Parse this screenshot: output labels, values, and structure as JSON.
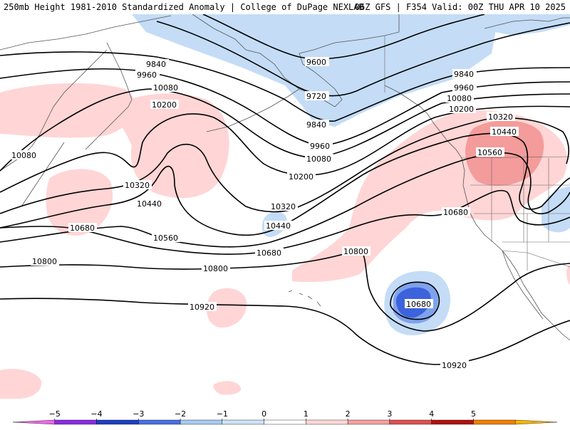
{
  "header": {
    "left": "250mb Height 1981-2010 Standardized Anomaly | College of DuPage NEXLAB",
    "right": "06Z GFS | F354 Valid: 00Z THU APR 10 2025"
  },
  "contour_labels": {
    "l9600": "9600",
    "l9720": "9720",
    "l9840a": "9840",
    "l9840b": "9840",
    "l9840c": "9840",
    "l9960a": "9960",
    "l9960b": "9960",
    "l9960c": "9960",
    "l10080a": "10080",
    "l10080b": "10080",
    "l10080c": "10080",
    "l10080d": "10080",
    "l10200a": "10200",
    "l10200b": "10200",
    "l10200c": "10200",
    "l10320a": "10320",
    "l10320b": "10320",
    "l10320c": "10320",
    "l10440a": "10440",
    "l10440b": "10440",
    "l10440c": "10440",
    "l10560a": "10560",
    "l10560b": "10560",
    "l10680a": "10680",
    "l10680b": "10680",
    "l10680c": "10680",
    "l10680d": "10680",
    "l10800a": "10800",
    "l10800b": "10800",
    "l10800c": "10800",
    "l10920a": "10920",
    "l10920b": "10920"
  },
  "legend": {
    "ticks": [
      "−5",
      "−4",
      "−3",
      "−2",
      "−1",
      "0",
      "1",
      "2",
      "3",
      "4",
      "5"
    ],
    "colors": [
      "#ee66ee",
      "#8a2be2",
      "#1e3fbf",
      "#4a6fe3",
      "#a9cbf2",
      "#cfe3f8",
      "#ffffff",
      "#ffd7d7",
      "#f5a0a0",
      "#e05050",
      "#b01010",
      "#f08000",
      "#ffb300"
    ]
  },
  "anomaly_colors": {
    "neg1": "#c4dcf6",
    "neg2": "#7fa2ec",
    "neg3": "#3c63dc",
    "pos1": "#ffd5d5",
    "pos2": "#f49b9b"
  }
}
